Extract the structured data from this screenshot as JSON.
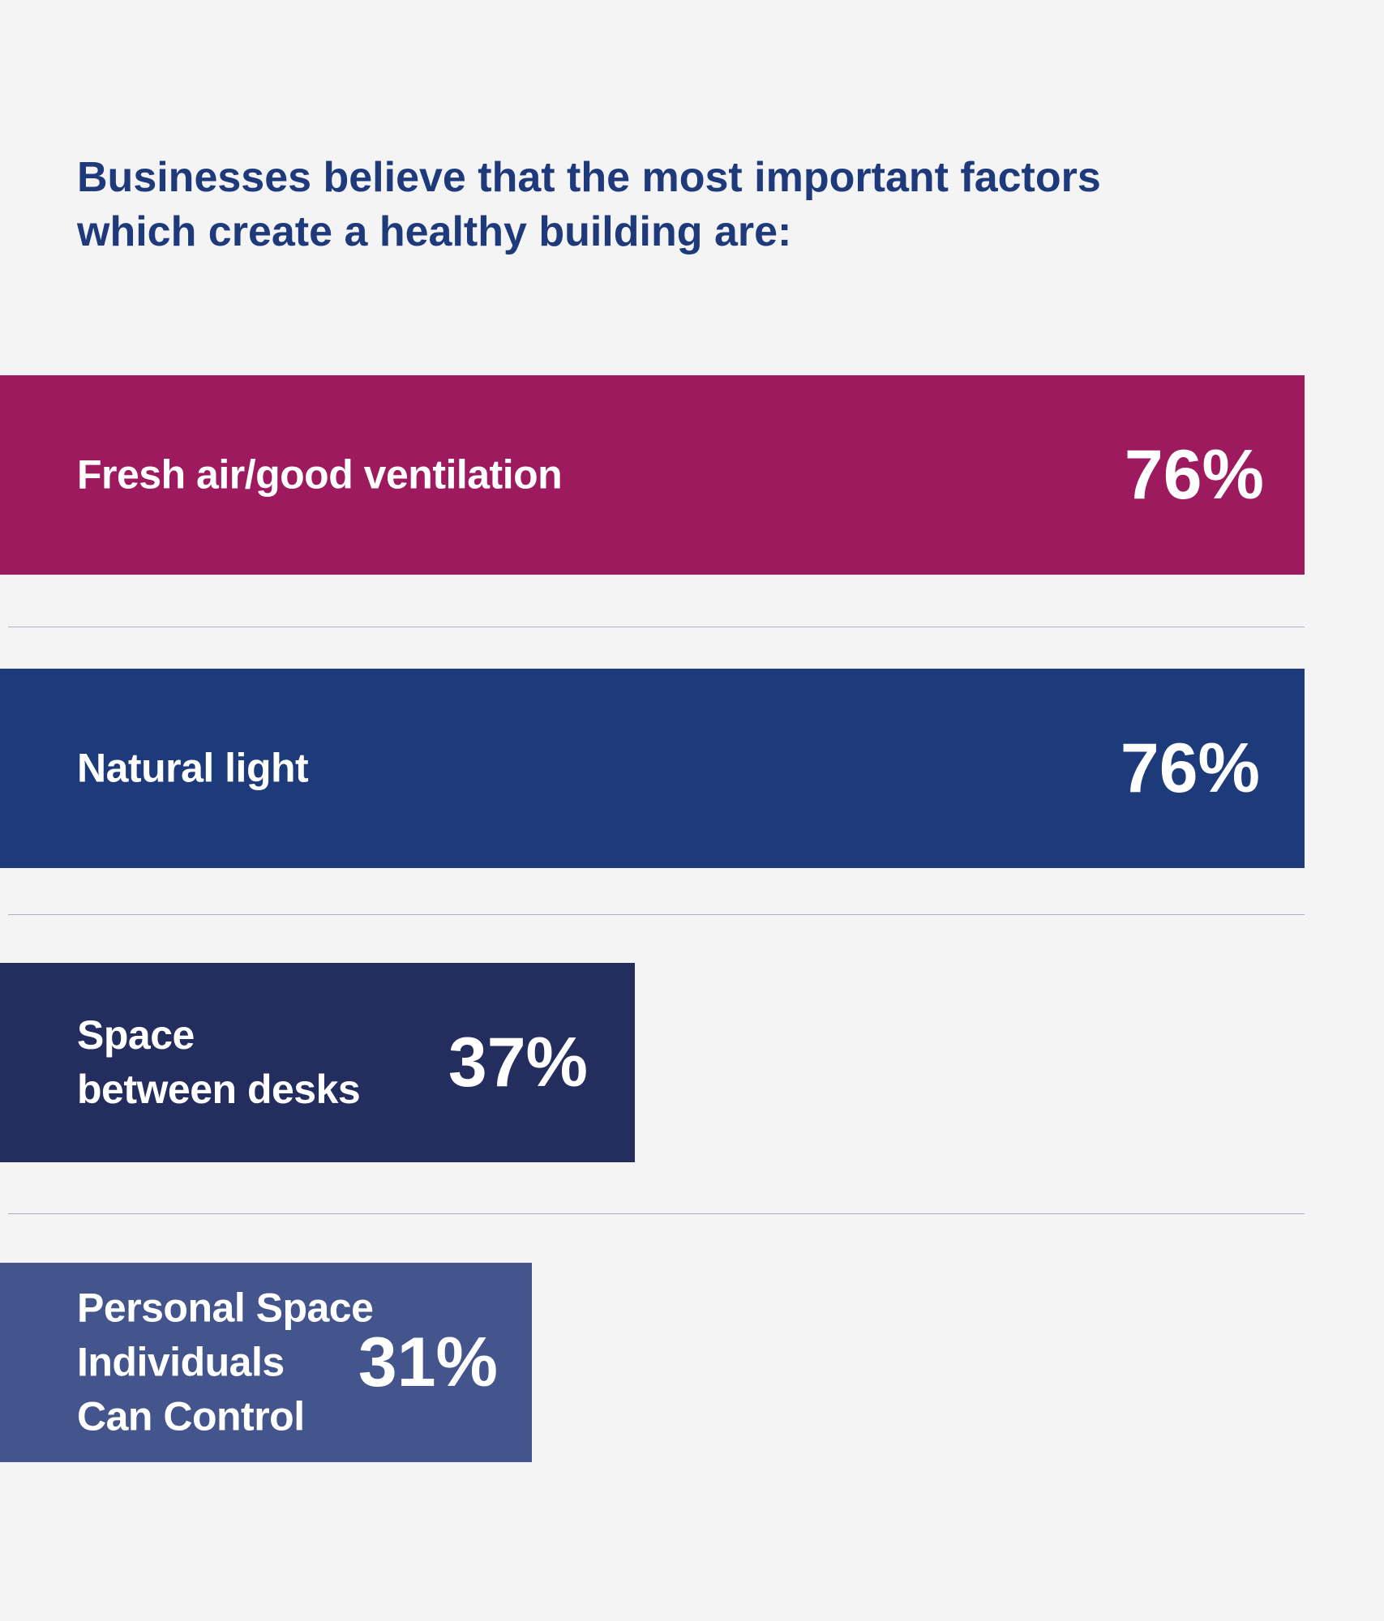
{
  "title_lines": [
    "Businesses believe that the most important factors",
    "which create a healthy building are:"
  ],
  "chart_data": {
    "type": "bar",
    "orientation": "horizontal",
    "title": "Businesses believe that the most important factors which create a healthy building are:",
    "categories": [
      "Fresh air/good ventilation",
      "Natural light",
      "Space between desks",
      "Personal Space Individuals Can Control"
    ],
    "values": [
      76,
      76,
      37,
      31
    ],
    "unit": "%",
    "bars": [
      {
        "label_lines": [
          "Fresh air/good ventilation"
        ],
        "value": 76,
        "value_label": "76%",
        "color": "#9d1a5e"
      },
      {
        "label_lines": [
          "Natural light"
        ],
        "value": 76,
        "value_label": "76%",
        "color": "#1d3b7b"
      },
      {
        "label_lines": [
          "Space",
          "between desks"
        ],
        "value": 37,
        "value_label": "37%",
        "color": "#232d5e"
      },
      {
        "label_lines": [
          "Personal Space",
          "Individuals",
          "Can Control"
        ],
        "value": 31,
        "value_label": "31%",
        "color": "#44548c"
      }
    ]
  }
}
